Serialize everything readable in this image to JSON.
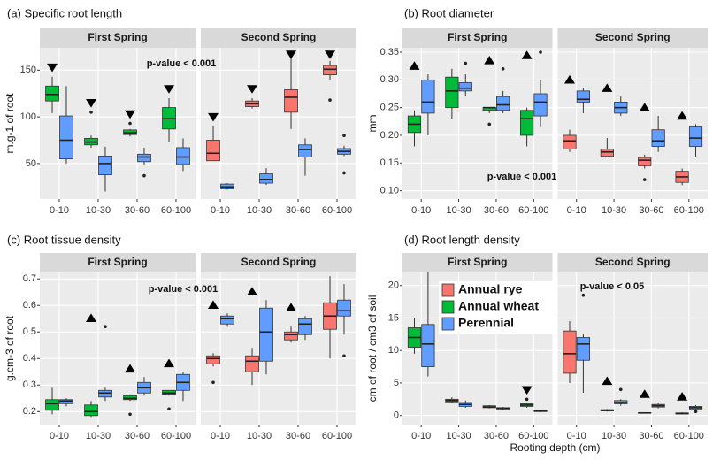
{
  "chart_data": [
    {
      "type": "box",
      "title": "(a) Specific root length",
      "ylabel": "m.g-1 of root",
      "ylim": [
        12,
        174
      ],
      "yticks": [
        50,
        100,
        150
      ],
      "categories": [
        "0-10",
        "10-30",
        "30-60",
        "60-100"
      ],
      "annotation": "p-value < 0.001",
      "facets": [
        {
          "name": "First Spring",
          "markers": [
            "down",
            "down",
            "down",
            "down"
          ],
          "groups": [
            {
              "color": "#00BA38",
              "boxes": [
                {
                  "min": 104,
                  "q1": 117,
                  "median": 124,
                  "q3": 133,
                  "max": 143
                },
                {
                  "min": 67,
                  "q1": 70,
                  "median": 73,
                  "q3": 77,
                  "max": 80,
                  "outliers": [
                    105
                  ]
                },
                {
                  "min": 79,
                  "q1": 81,
                  "median": 83,
                  "q3": 86,
                  "max": 87,
                  "outliers": [
                    93
                  ]
                },
                {
                  "min": 73,
                  "q1": 87,
                  "median": 98,
                  "q3": 110,
                  "max": 120
                }
              ]
            },
            {
              "color": "#619CFF",
              "boxes": [
                {
                  "min": 50,
                  "q1": 55,
                  "median": 75,
                  "q3": 101,
                  "max": 133
                },
                {
                  "min": 20,
                  "q1": 38,
                  "median": 50,
                  "q3": 58,
                  "max": 68
                },
                {
                  "min": 48,
                  "q1": 52,
                  "median": 57,
                  "q3": 60,
                  "max": 67,
                  "outliers": [
                    37
                  ]
                },
                {
                  "min": 42,
                  "q1": 49,
                  "median": 57,
                  "q3": 67,
                  "max": 77
                }
              ]
            }
          ]
        },
        {
          "name": "Second Spring",
          "markers": [
            "down",
            "down",
            "down",
            "down"
          ],
          "groups": [
            {
              "color": "#F8766D",
              "boxes": [
                {
                  "min": 53,
                  "q1": 53,
                  "median": 61,
                  "q3": 75,
                  "max": 90
                },
                {
                  "min": 109,
                  "q1": 111,
                  "median": 114,
                  "q3": 117,
                  "max": 120
                },
                {
                  "min": 87,
                  "q1": 105,
                  "median": 121,
                  "q3": 129,
                  "max": 167
                },
                {
                  "min": 140,
                  "q1": 145,
                  "median": 151,
                  "q3": 155,
                  "max": 160,
                  "outliers": [
                    118
                  ]
                }
              ]
            },
            {
              "color": "#619CFF",
              "boxes": [
                {
                  "min": 22,
                  "q1": 23,
                  "median": 25,
                  "q3": 28,
                  "max": 29
                },
                {
                  "min": 27,
                  "q1": 29,
                  "median": 33,
                  "q3": 39,
                  "max": 45
                },
                {
                  "min": 37,
                  "q1": 57,
                  "median": 65,
                  "q3": 70,
                  "max": 77
                },
                {
                  "min": 58,
                  "q1": 60,
                  "median": 63,
                  "q3": 66,
                  "max": 69,
                  "outliers": [
                    80,
                    40
                  ]
                }
              ]
            }
          ]
        }
      ]
    },
    {
      "type": "box",
      "title": "(b) Root diameter",
      "ylabel": "mm",
      "ylim": [
        0.085,
        0.358
      ],
      "yticks": [
        {
          "value": 0.1,
          "label": "0.10"
        },
        0.15,
        {
          "value": 0.2,
          "label": "0.20"
        },
        0.25,
        {
          "value": 0.3,
          "label": "0.30"
        },
        0.35
      ],
      "categories": [
        "0-10",
        "10-30",
        "30-60",
        "60-100"
      ],
      "annotation": "p-value < 0.001",
      "facets": [
        {
          "name": "First Spring",
          "markers": [
            "up",
            null,
            "up",
            "up"
          ],
          "groups": [
            {
              "color": "#00BA38",
              "boxes": [
                {
                  "min": 0.18,
                  "q1": 0.205,
                  "median": 0.22,
                  "q3": 0.235,
                  "max": 0.245
                },
                {
                  "min": 0.23,
                  "q1": 0.25,
                  "median": 0.28,
                  "q3": 0.305,
                  "max": 0.32
                },
                {
                  "min": 0.24,
                  "q1": 0.245,
                  "median": 0.25,
                  "q3": 0.25,
                  "max": 0.25,
                  "outliers": [
                    0.22
                  ]
                },
                {
                  "min": 0.18,
                  "q1": 0.2,
                  "median": 0.23,
                  "q3": 0.245,
                  "max": 0.25
                }
              ]
            },
            {
              "color": "#619CFF",
              "boxes": [
                {
                  "min": 0.2,
                  "q1": 0.24,
                  "median": 0.26,
                  "q3": 0.3,
                  "max": 0.31
                },
                {
                  "min": 0.27,
                  "q1": 0.28,
                  "median": 0.285,
                  "q3": 0.295,
                  "max": 0.31,
                  "outliers": [
                    0.33
                  ]
                },
                {
                  "min": 0.24,
                  "q1": 0.245,
                  "median": 0.255,
                  "q3": 0.27,
                  "max": 0.28,
                  "outliers": [
                    0.32
                  ]
                },
                {
                  "min": 0.215,
                  "q1": 0.235,
                  "median": 0.26,
                  "q3": 0.275,
                  "max": 0.3,
                  "outliers": [
                    0.35
                  ]
                }
              ]
            }
          ]
        },
        {
          "name": "Second Spring",
          "markers": [
            "up",
            "up",
            "up",
            "up"
          ],
          "groups": [
            {
              "color": "#F8766D",
              "boxes": [
                {
                  "min": 0.17,
                  "q1": 0.175,
                  "median": 0.19,
                  "q3": 0.2,
                  "max": 0.21
                },
                {
                  "min": 0.16,
                  "q1": 0.162,
                  "median": 0.17,
                  "q3": 0.175,
                  "max": 0.195
                },
                {
                  "min": 0.14,
                  "q1": 0.145,
                  "median": 0.155,
                  "q3": 0.16,
                  "max": 0.165,
                  "outliers": [
                    0.12
                  ]
                },
                {
                  "min": 0.11,
                  "q1": 0.115,
                  "median": 0.125,
                  "q3": 0.135,
                  "max": 0.14
                }
              ]
            },
            {
              "color": "#619CFF",
              "boxes": [
                {
                  "min": 0.24,
                  "q1": 0.26,
                  "median": 0.265,
                  "q3": 0.28,
                  "max": 0.285
                },
                {
                  "min": 0.235,
                  "q1": 0.24,
                  "median": 0.25,
                  "q3": 0.26,
                  "max": 0.27
                },
                {
                  "min": 0.17,
                  "q1": 0.18,
                  "median": 0.19,
                  "q3": 0.21,
                  "max": 0.235
                },
                {
                  "min": 0.16,
                  "q1": 0.18,
                  "median": 0.195,
                  "q3": 0.215,
                  "max": 0.22
                }
              ]
            }
          ]
        }
      ]
    },
    {
      "type": "box",
      "title": "(c) Root tissue density",
      "ylabel": "g.cm-3 of root",
      "ylim": [
        0.151,
        0.724
      ],
      "yticks": [
        0.2,
        0.3,
        0.4,
        0.5,
        0.6,
        0.7
      ],
      "categories": [
        "0-10",
        "10-30",
        "30-60",
        "60-100"
      ],
      "annotation": "p-value < 0.001",
      "facets": [
        {
          "name": "First Spring",
          "markers": [
            null,
            "up",
            "up",
            "up"
          ],
          "groups": [
            {
              "color": "#00BA38",
              "boxes": [
                {
                  "min": 0.19,
                  "q1": 0.205,
                  "median": 0.23,
                  "q3": 0.245,
                  "max": 0.29
                },
                {
                  "min": 0.18,
                  "q1": 0.185,
                  "median": 0.2,
                  "q3": 0.225,
                  "max": 0.24
                },
                {
                  "min": 0.24,
                  "q1": 0.245,
                  "median": 0.25,
                  "q3": 0.26,
                  "max": 0.265,
                  "outliers": [
                    0.19
                  ]
                },
                {
                  "min": 0.26,
                  "q1": 0.265,
                  "median": 0.27,
                  "q3": 0.28,
                  "max": 0.28,
                  "outliers": [
                    0.21
                  ]
                }
              ]
            },
            {
              "color": "#619CFF",
              "boxes": [
                {
                  "min": 0.22,
                  "q1": 0.23,
                  "median": 0.24,
                  "q3": 0.245,
                  "max": 0.25
                },
                {
                  "min": 0.24,
                  "q1": 0.255,
                  "median": 0.27,
                  "q3": 0.28,
                  "max": 0.29,
                  "outliers": [
                    0.52
                  ]
                },
                {
                  "min": 0.26,
                  "q1": 0.27,
                  "median": 0.29,
                  "q3": 0.31,
                  "max": 0.33
                },
                {
                  "min": 0.24,
                  "q1": 0.28,
                  "median": 0.31,
                  "q3": 0.34,
                  "max": 0.35
                }
              ]
            }
          ]
        },
        {
          "name": "Second Spring",
          "markers": [
            "up",
            "up",
            "up",
            null
          ],
          "groups": [
            {
              "color": "#F8766D",
              "boxes": [
                {
                  "min": 0.37,
                  "q1": 0.38,
                  "median": 0.4,
                  "q3": 0.41,
                  "max": 0.42,
                  "outliers": [
                    0.31
                  ]
                },
                {
                  "min": 0.3,
                  "q1": 0.35,
                  "median": 0.39,
                  "q3": 0.41,
                  "max": 0.44
                },
                {
                  "min": 0.46,
                  "q1": 0.47,
                  "median": 0.49,
                  "q3": 0.5,
                  "max": 0.52
                },
                {
                  "min": 0.4,
                  "q1": 0.51,
                  "median": 0.56,
                  "q3": 0.61,
                  "max": 0.71
                }
              ]
            },
            {
              "color": "#619CFF",
              "boxes": [
                {
                  "min": 0.52,
                  "q1": 0.53,
                  "median": 0.55,
                  "q3": 0.56,
                  "max": 0.57
                },
                {
                  "min": 0.34,
                  "q1": 0.39,
                  "median": 0.5,
                  "q3": 0.59,
                  "max": 0.62
                },
                {
                  "min": 0.47,
                  "q1": 0.49,
                  "median": 0.53,
                  "q3": 0.55,
                  "max": 0.56
                },
                {
                  "min": 0.49,
                  "q1": 0.56,
                  "median": 0.58,
                  "q3": 0.62,
                  "max": 0.68,
                  "outliers": [
                    0.41
                  ]
                }
              ]
            }
          ]
        }
      ]
    },
    {
      "type": "box",
      "title": "(d) Root length density",
      "ylabel": "cm of root / cm3 of soil",
      "xlabel": "Rooting depth (cm)",
      "ylim": [
        -1.4,
        22
      ],
      "yticks": [
        0,
        5,
        10,
        15,
        20
      ],
      "categories": [
        "0-10",
        "10-30",
        "30-60",
        "60-100"
      ],
      "annotation": "p-value < 0.05",
      "legend": [
        {
          "name": "Annual rye",
          "color": "#F8766D"
        },
        {
          "name": "Annual wheat",
          "color": "#00BA38"
        },
        {
          "name": "Perennial",
          "color": "#619CFF"
        }
      ],
      "facets": [
        {
          "name": "First Spring",
          "markers": [
            null,
            null,
            null,
            "down"
          ],
          "groups": [
            {
              "color": "#00BA38",
              "boxes": [
                {
                  "min": 9.5,
                  "q1": 10.5,
                  "median": 12,
                  "q3": 13.5,
                  "max": 15
                },
                {
                  "min": 2,
                  "q1": 2.1,
                  "median": 2.3,
                  "q3": 2.5,
                  "max": 2.8
                },
                {
                  "min": 1.1,
                  "q1": 1.2,
                  "median": 1.3,
                  "q3": 1.5,
                  "max": 1.6
                },
                {
                  "min": 1.2,
                  "q1": 1.4,
                  "median": 1.6,
                  "q3": 1.8,
                  "max": 2,
                  "outliers": [
                    2.5
                  ]
                }
              ]
            },
            {
              "color": "#619CFF",
              "boxes": [
                {
                  "min": 6,
                  "q1": 7.5,
                  "median": 11,
                  "q3": 14,
                  "max": 22
                },
                {
                  "min": 1.2,
                  "q1": 1.4,
                  "median": 1.7,
                  "q3": 2,
                  "max": 2.3
                },
                {
                  "min": 0.9,
                  "q1": 1,
                  "median": 1.1,
                  "q3": 1.2,
                  "max": 1.3
                },
                {
                  "min": 0.5,
                  "q1": 0.6,
                  "median": 0.7,
                  "q3": 0.8,
                  "max": 0.9
                }
              ]
            }
          ]
        },
        {
          "name": "Second Spring",
          "markers": [
            null,
            "up",
            "up",
            "up"
          ],
          "groups": [
            {
              "color": "#F8766D",
              "boxes": [
                {
                  "min": 5,
                  "q1": 6.5,
                  "median": 9.5,
                  "q3": 13,
                  "max": 14.5
                },
                {
                  "min": 0.6,
                  "q1": 0.7,
                  "median": 0.8,
                  "q3": 0.9,
                  "max": 1
                },
                {
                  "min": 0.3,
                  "q1": 0.35,
                  "median": 0.4,
                  "q3": 0.45,
                  "max": 0.5
                },
                {
                  "min": 0.2,
                  "q1": 0.25,
                  "median": 0.3,
                  "q3": 0.4,
                  "max": 0.5
                }
              ]
            },
            {
              "color": "#619CFF",
              "boxes": [
                {
                  "min": 3.5,
                  "q1": 8.5,
                  "median": 11,
                  "q3": 12,
                  "max": 12.5,
                  "outliers": [
                    18.5
                  ]
                },
                {
                  "min": 1.5,
                  "q1": 1.8,
                  "median": 2,
                  "q3": 2.3,
                  "max": 2.5,
                  "outliers": [
                    4
                  ]
                },
                {
                  "min": 1.1,
                  "q1": 1.3,
                  "median": 1.5,
                  "q3": 1.7,
                  "max": 2
                },
                {
                  "min": 0.8,
                  "q1": 1,
                  "median": 1.2,
                  "q3": 1.4,
                  "max": 1.6,
                  "outliers": [
                    0.6
                  ]
                }
              ]
            }
          ]
        }
      ]
    }
  ]
}
